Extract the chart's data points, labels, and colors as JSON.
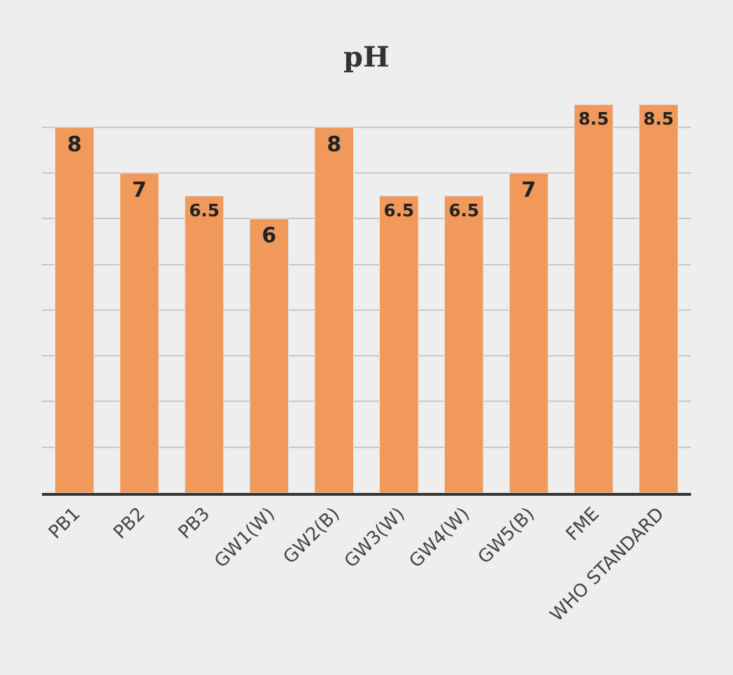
{
  "chart_data": {
    "type": "bar",
    "title": "pH",
    "categories": [
      "PB1",
      "PB2",
      "PB3",
      "GW1(W)",
      "GW2(B)",
      "GW3(W)",
      "GW4(W)",
      "GW5(B)",
      "FME",
      "WHO STANDARD"
    ],
    "values": [
      8,
      7,
      6.5,
      6,
      8,
      6.5,
      6.5,
      7,
      8.5,
      8.5
    ],
    "color": "#f0995a",
    "yticks": [
      {
        "value": 1,
        "label": null
      },
      {
        "value": 2,
        "label": null
      },
      {
        "value": 3,
        "label": null
      },
      {
        "value": 4,
        "label": null
      },
      {
        "value": 5,
        "label": null
      },
      {
        "value": 6,
        "label": null
      },
      {
        "value": 7,
        "label": null
      },
      {
        "value": 8,
        "label": null
      }
    ],
    "tick_labels": "x",
    "grid": "y",
    "data_labels": true
  }
}
